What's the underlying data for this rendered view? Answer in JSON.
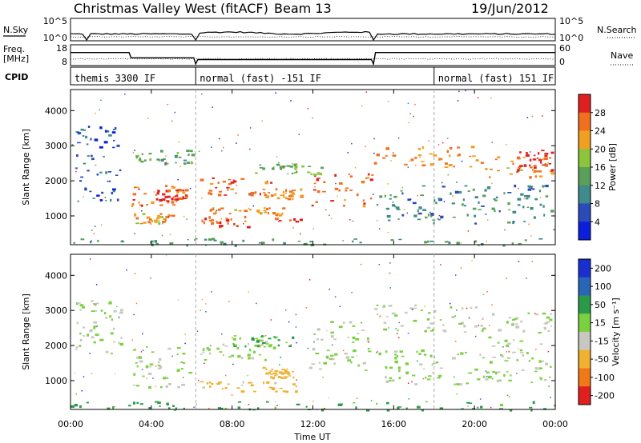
{
  "header": {
    "station": "Christmas Valley West (fitACF)",
    "beam": "Beam 13",
    "date": "19/Jun/2012"
  },
  "sky_panel": {
    "left_label": "N.Sky",
    "right_label": "N.Search",
    "left_ticks": [
      "10^5",
      "10^0"
    ],
    "right_ticks": [
      "10^5",
      "10^0"
    ]
  },
  "freq_panel": {
    "left_label_1": "Freq.",
    "left_label_2": "[MHz]",
    "right_label": "Nave",
    "left_ticks": [
      "18",
      "8"
    ],
    "right_ticks": [
      "60",
      "0"
    ]
  },
  "cpid": {
    "label": "CPID",
    "segments": [
      {
        "start": 0.0,
        "end": 6.2,
        "name": "themis 3300 IF"
      },
      {
        "start": 6.2,
        "end": 18.0,
        "name": "normal (fast) -151 IF"
      },
      {
        "start": 18.0,
        "end": 24.0,
        "name": "normal (fast) 151 IF"
      }
    ]
  },
  "xaxis": {
    "label": "Time UT",
    "range_hours": [
      0,
      24
    ],
    "ticks": [
      {
        "h": 0,
        "label": "00:00"
      },
      {
        "h": 4,
        "label": "04:00"
      },
      {
        "h": 8,
        "label": "08:00"
      },
      {
        "h": 12,
        "label": "12:00"
      },
      {
        "h": 16,
        "label": "16:00"
      },
      {
        "h": 20,
        "label": "20:00"
      },
      {
        "h": 24,
        "label": "00:00"
      }
    ]
  },
  "chart_data": [
    {
      "type": "heatmap",
      "quantity": "power",
      "ylabel": "Slant Range [km]",
      "ylim": [
        180,
        4600
      ],
      "yticks": [
        1000,
        2000,
        3000,
        4000
      ],
      "colorbar": {
        "label": "Power [dB]",
        "range": [
          0,
          32
        ],
        "tick_values": [
          4,
          8,
          12,
          16,
          20,
          24,
          28
        ],
        "tick_labels": [
          "4",
          "8",
          "12",
          "16",
          "20",
          "24",
          "28"
        ],
        "colors": [
          "#0a1edc",
          "#2a4bb8",
          "#3f8a8a",
          "#5aa05a",
          "#8cc43c",
          "#f0a020",
          "#f07020",
          "#e02020"
        ]
      },
      "regions": [
        {
          "t0": 0.0,
          "t1": 24.0,
          "r0": 180,
          "r1": 380,
          "p": 12
        },
        {
          "t0": 3.0,
          "t1": 6.0,
          "r0": 1300,
          "r1": 1900,
          "p": 26
        },
        {
          "t0": 3.0,
          "t1": 5.0,
          "r0": 800,
          "r1": 1100,
          "p": 22
        },
        {
          "t0": 4.5,
          "t1": 5.8,
          "r0": 1400,
          "r1": 1800,
          "p": 29
        },
        {
          "t0": 6.4,
          "t1": 11.5,
          "r0": 700,
          "r1": 1000,
          "p": 27
        },
        {
          "t0": 6.8,
          "t1": 10.5,
          "r0": 1000,
          "r1": 1300,
          "p": 23
        },
        {
          "t0": 6.4,
          "t1": 10.0,
          "r0": 1600,
          "r1": 2100,
          "p": 27
        },
        {
          "t0": 9.5,
          "t1": 11.5,
          "r0": 1500,
          "r1": 1800,
          "p": 24
        },
        {
          "t0": 11.8,
          "t1": 14.9,
          "r0": 1300,
          "r1": 2300,
          "p": 26
        },
        {
          "t0": 9.0,
          "t1": 12.8,
          "r0": 2200,
          "r1": 2500,
          "p": 16
        },
        {
          "t0": 15.0,
          "t1": 23.8,
          "r0": 800,
          "r1": 1900,
          "p": 10
        },
        {
          "t0": 15.0,
          "t1": 20.5,
          "r0": 2400,
          "r1": 3000,
          "p": 24
        },
        {
          "t0": 20.5,
          "t1": 23.8,
          "r0": 2100,
          "r1": 2700,
          "p": 23
        },
        {
          "t0": 0.2,
          "t1": 2.5,
          "r0": 1400,
          "r1": 3600,
          "p": 6
        },
        {
          "t0": 3.0,
          "t1": 6.0,
          "r0": 2500,
          "r1": 2900,
          "p": 14
        },
        {
          "t0": 22.0,
          "t1": 23.8,
          "r0": 2300,
          "r1": 2900,
          "p": 30
        }
      ]
    },
    {
      "type": "heatmap",
      "quantity": "velocity",
      "ylabel": "Slant Range [km]",
      "ylim": [
        180,
        4600
      ],
      "yticks": [
        1000,
        2000,
        3000,
        4000
      ],
      "colorbar": {
        "label": "Velocity [m s⁻¹]",
        "range": [
          -250,
          250
        ],
        "tick_values": [
          200,
          100,
          50,
          15,
          -15,
          -50,
          -100,
          -200
        ],
        "tick_labels": [
          "200",
          "100",
          "50",
          "15",
          "-15",
          "-50",
          "-100",
          "-200"
        ],
        "colors": [
          "#1a2fd0",
          "#2a66b8",
          "#2a9a4a",
          "#7ad040",
          "#c8c8c0",
          "#f0b030",
          "#f07818",
          "#e02020"
        ]
      },
      "regions": [
        {
          "t0": 0.0,
          "t1": 24.0,
          "r0": 180,
          "r1": 420,
          "v": 40
        },
        {
          "t0": 3.0,
          "t1": 6.0,
          "r0": 800,
          "r1": 2000,
          "v": 0
        },
        {
          "t0": 6.4,
          "t1": 11.5,
          "r0": 700,
          "r1": 1000,
          "v": -40
        },
        {
          "t0": 9.5,
          "t1": 11.0,
          "r0": 1100,
          "r1": 1400,
          "v": -45
        },
        {
          "t0": 6.4,
          "t1": 10.0,
          "r0": 1600,
          "r1": 2200,
          "v": 0
        },
        {
          "t0": 8.0,
          "t1": 11.0,
          "r0": 1900,
          "r1": 2300,
          "v": 35
        },
        {
          "t0": 11.8,
          "t1": 14.9,
          "r0": 1300,
          "r1": 2700,
          "v": 0
        },
        {
          "t0": 15.0,
          "t1": 20.5,
          "r0": 2400,
          "r1": 3200,
          "v": 0
        },
        {
          "t0": 20.5,
          "t1": 23.8,
          "r0": 2000,
          "r1": 3000,
          "v": 0
        },
        {
          "t0": 15.0,
          "t1": 23.8,
          "r0": 900,
          "r1": 1900,
          "v": 5
        },
        {
          "t0": 0.2,
          "t1": 2.8,
          "r0": 1800,
          "r1": 3400,
          "v": 0
        }
      ]
    }
  ]
}
